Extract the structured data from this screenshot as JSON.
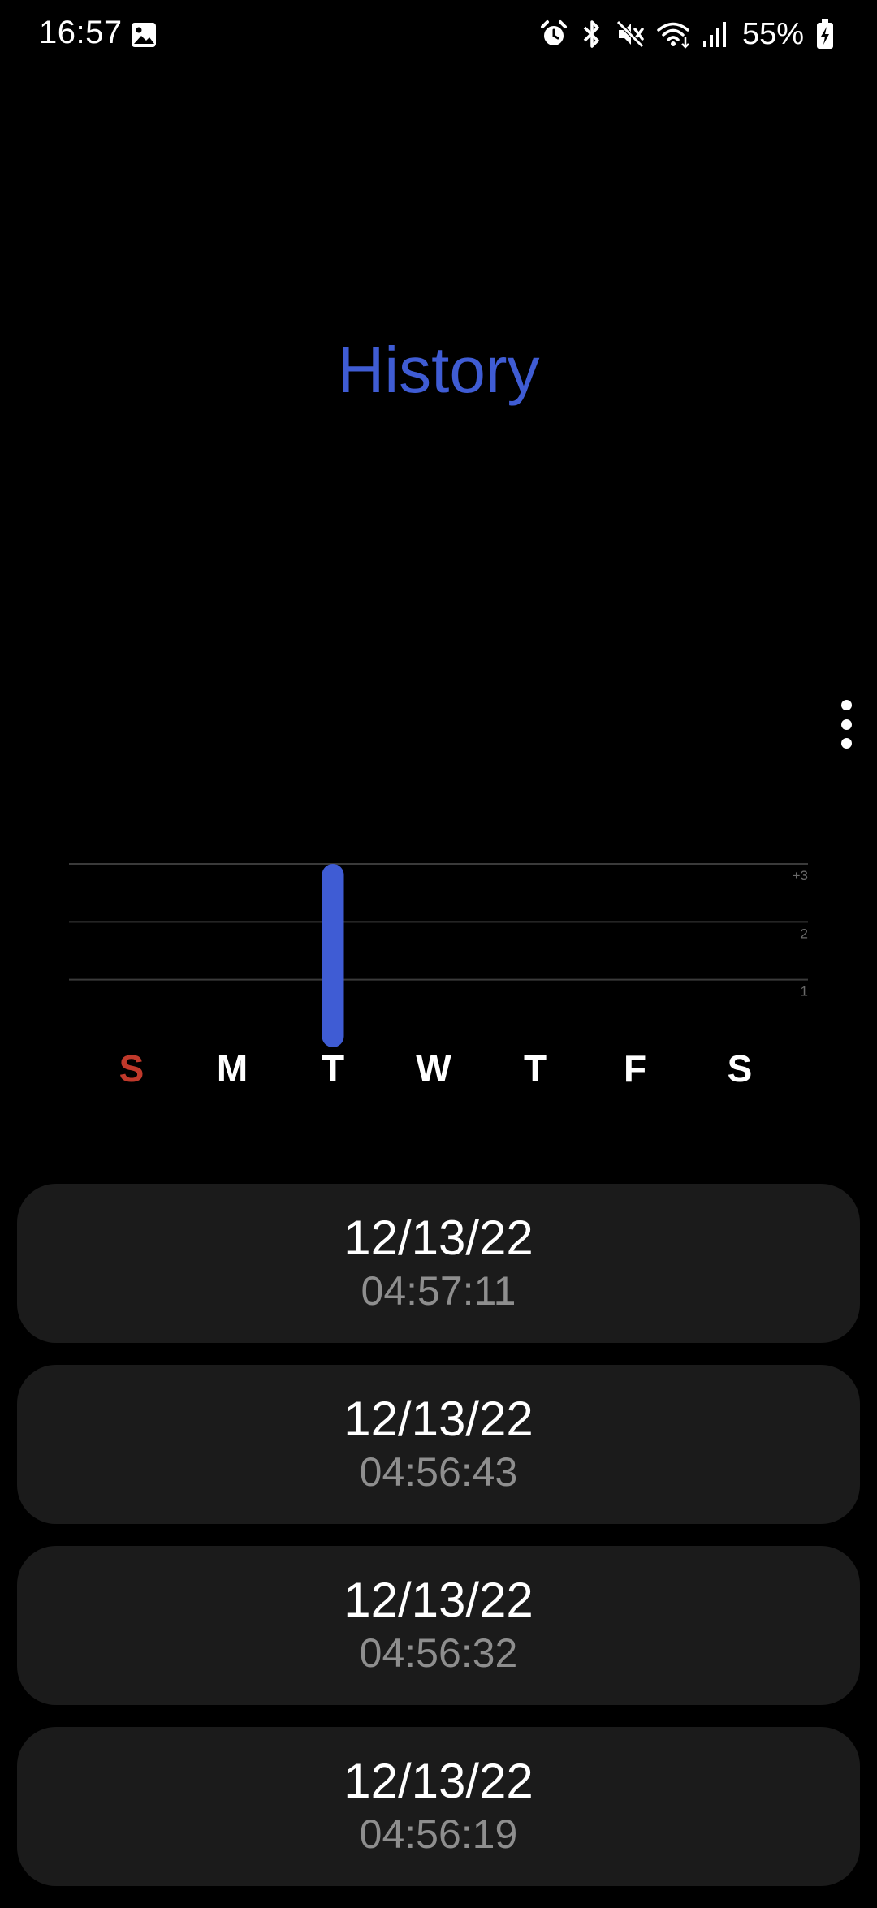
{
  "status_bar": {
    "time": "16:57",
    "battery": "55%",
    "left_icons": [
      "gallery-icon"
    ],
    "right_icons": [
      "alarm-icon",
      "bluetooth-icon",
      "mute-icon",
      "wifi-icon",
      "signal-icon",
      "battery-charging-icon"
    ]
  },
  "title": "History",
  "menu": {
    "icon": "more-vertical-icon"
  },
  "colors": {
    "accent": "#3f5cd4",
    "sunday": "#c0392b",
    "card": "#1b1b1b",
    "secondary_text": "#8e8e8e"
  },
  "chart_data": {
    "type": "bar",
    "categories": [
      "S",
      "M",
      "T",
      "W",
      "T",
      "F",
      "S"
    ],
    "values": [
      0,
      0,
      3,
      0,
      0,
      0,
      0
    ],
    "y_tick_labels": [
      "1",
      "2",
      "+3"
    ],
    "y_ticks": [
      1,
      2,
      3
    ],
    "ylim": [
      0,
      3
    ],
    "grid": true
  },
  "history": [
    {
      "date": "12/13/22",
      "time": "04:57:11"
    },
    {
      "date": "12/13/22",
      "time": "04:56:43"
    },
    {
      "date": "12/13/22",
      "time": "04:56:32"
    },
    {
      "date": "12/13/22",
      "time": "04:56:19"
    }
  ]
}
